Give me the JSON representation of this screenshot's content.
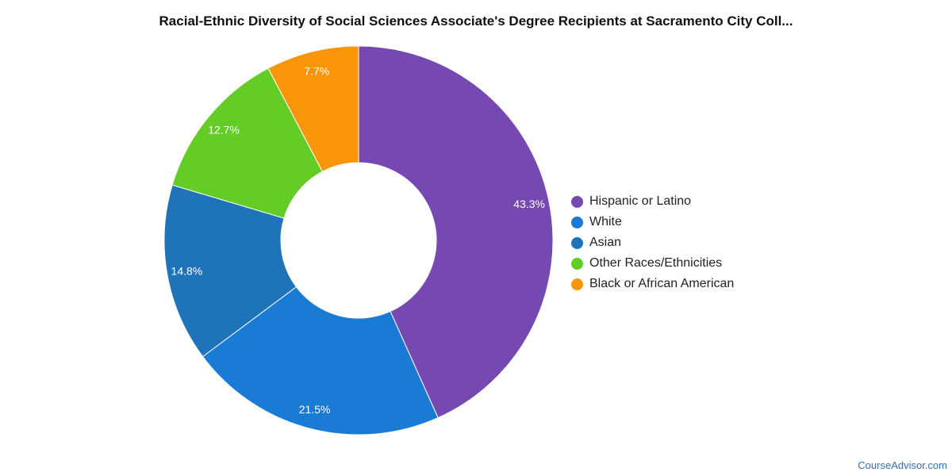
{
  "chart_data": {
    "type": "pie",
    "variant": "donut",
    "title": "Racial-Ethnic Diversity of Social Sciences Associate's Degree Recipients at Sacramento City Coll...",
    "legend_placement": "right",
    "slices": [
      {
        "label": "Hispanic or Latino",
        "value": 43.3,
        "display": "43.3%",
        "color": "#7549b1"
      },
      {
        "label": "White",
        "value": 21.5,
        "display": "21.5%",
        "color": "#1a7bd4"
      },
      {
        "label": "Asian",
        "value": 14.8,
        "display": "14.8%",
        "color": "#1f74b9"
      },
      {
        "label": "Other Races/Ethnicities",
        "value": 12.7,
        "display": "12.7%",
        "color": "#63cc25"
      },
      {
        "label": "Black or African American",
        "value": 7.7,
        "display": "7.7%",
        "color": "#f89508"
      }
    ]
  },
  "footer": {
    "source": "CourseAdvisor.com"
  }
}
